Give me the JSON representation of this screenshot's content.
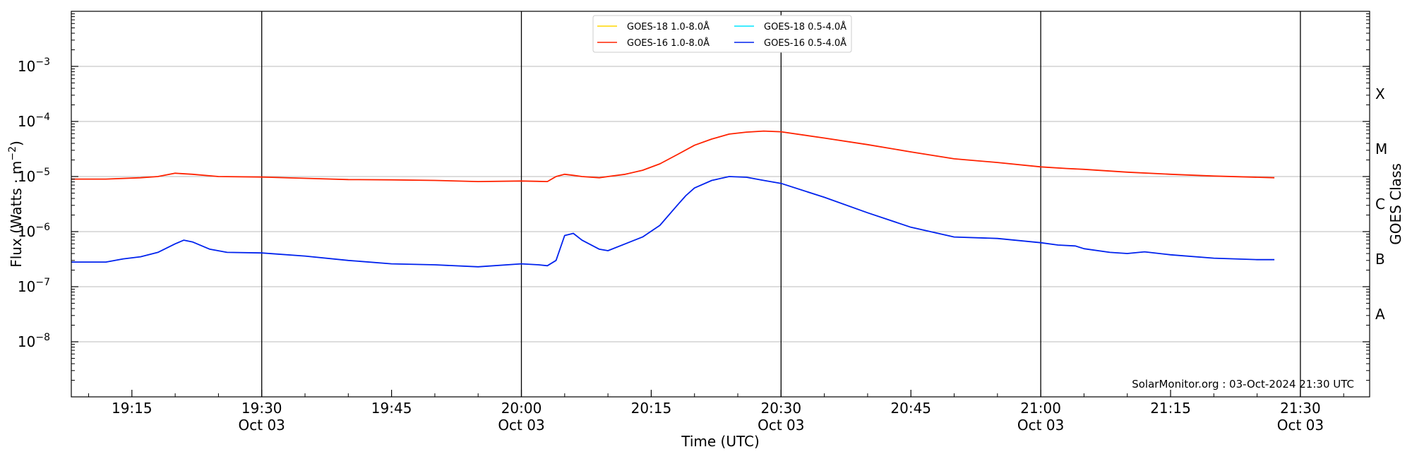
{
  "chart_data": {
    "type": "line",
    "title": "",
    "xlabel": "Time (UTC)",
    "ylabel": "Flux (Watts · m",
    "ylabel_sup": "−2",
    "ylabel_end": ")",
    "y2label": "GOES Class",
    "y_scale": "log",
    "ylim": [
      1e-09,
      0.01
    ],
    "xlim": [
      "19:08",
      "21:38"
    ],
    "grid": "horizontal at decades",
    "vertical_lines": [
      "19:30",
      "20:00",
      "20:30",
      "21:00",
      "21:30"
    ],
    "x_ticks": [
      {
        "t": "19:15",
        "label": "19:15",
        "sub": ""
      },
      {
        "t": "19:30",
        "label": "19:30",
        "sub": "Oct 03"
      },
      {
        "t": "19:45",
        "label": "19:45",
        "sub": ""
      },
      {
        "t": "20:00",
        "label": "20:00",
        "sub": "Oct 03"
      },
      {
        "t": "20:15",
        "label": "20:15",
        "sub": ""
      },
      {
        "t": "20:30",
        "label": "20:30",
        "sub": "Oct 03"
      },
      {
        "t": "20:45",
        "label": "20:45",
        "sub": ""
      },
      {
        "t": "21:00",
        "label": "21:00",
        "sub": "Oct 03"
      },
      {
        "t": "21:15",
        "label": "21:15",
        "sub": ""
      },
      {
        "t": "21:30",
        "label": "21:30",
        "sub": "Oct 03"
      }
    ],
    "y_ticks": [
      {
        "exp": -8,
        "label": "10",
        "sup": "−8"
      },
      {
        "exp": -7,
        "label": "10",
        "sup": "−7"
      },
      {
        "exp": -6,
        "label": "10",
        "sup": "−6"
      },
      {
        "exp": -5,
        "label": "10",
        "sup": "−5"
      },
      {
        "exp": -4,
        "label": "10",
        "sup": "−4"
      },
      {
        "exp": -3,
        "label": "10",
        "sup": "−3"
      }
    ],
    "goes_classes": [
      {
        "label": "A",
        "exp": -7.5
      },
      {
        "label": "B",
        "exp": -6.5
      },
      {
        "label": "C",
        "exp": -5.5
      },
      {
        "label": "M",
        "exp": -4.5
      },
      {
        "label": "X",
        "exp": -3.5
      }
    ],
    "legend": {
      "position": "top-center",
      "entries": [
        {
          "name": "GOES-18 1.0-8.0Å",
          "color": "#ffd700"
        },
        {
          "name": "GOES-16 1.0-8.0Å",
          "color": "#ff2200"
        },
        {
          "name": "GOES-18 0.5-4.0Å",
          "color": "#00e5ff"
        },
        {
          "name": "GOES-16 0.5-4.0Å",
          "color": "#0022ee"
        }
      ]
    },
    "credit": "SolarMonitor.org : 03-Oct-2024 21:30 UTC",
    "series": [
      {
        "name": "GOES-16 1.0-8.0Å",
        "color": "#ff2200",
        "x": [
          "19:08",
          "19:12",
          "19:16",
          "19:18",
          "19:20",
          "19:22",
          "19:25",
          "19:30",
          "19:35",
          "19:40",
          "19:45",
          "19:50",
          "19:55",
          "20:00",
          "20:03",
          "20:04",
          "20:05",
          "20:06",
          "20:07",
          "20:09",
          "20:10",
          "20:12",
          "20:14",
          "20:16",
          "20:18",
          "20:20",
          "20:22",
          "20:24",
          "20:26",
          "20:28",
          "20:30",
          "20:35",
          "20:40",
          "20:45",
          "20:50",
          "20:55",
          "21:00",
          "21:03",
          "21:05",
          "21:10",
          "21:15",
          "21:20",
          "21:25",
          "21:27"
        ],
        "values": [
          9e-06,
          9e-06,
          9.5e-06,
          1e-05,
          1.15e-05,
          1.1e-05,
          1e-05,
          9.8e-06,
          9.3e-06,
          8.8e-06,
          8.7e-06,
          8.5e-06,
          8.1e-06,
          8.3e-06,
          8.1e-06,
          1e-05,
          1.1e-05,
          1.05e-05,
          1e-05,
          9.5e-06,
          1e-05,
          1.1e-05,
          1.3e-05,
          1.7e-05,
          2.5e-05,
          3.7e-05,
          4.8e-05,
          5.9e-05,
          6.4e-05,
          6.7e-05,
          6.5e-05,
          5e-05,
          3.8e-05,
          2.8e-05,
          2.1e-05,
          1.8e-05,
          1.5e-05,
          1.4e-05,
          1.35e-05,
          1.2e-05,
          1.1e-05,
          1.02e-05,
          9.7e-06,
          9.5e-06
        ]
      },
      {
        "name": "GOES-16 0.5-4.0Å",
        "color": "#0022ee",
        "x": [
          "19:08",
          "19:12",
          "19:14",
          "19:16",
          "19:18",
          "19:20",
          "19:21",
          "19:22",
          "19:24",
          "19:26",
          "19:30",
          "19:35",
          "19:40",
          "19:45",
          "19:50",
          "19:55",
          "20:00",
          "20:02",
          "20:03",
          "20:04",
          "20:05",
          "20:06",
          "20:07",
          "20:09",
          "20:10",
          "20:12",
          "20:14",
          "20:16",
          "20:18",
          "20:19",
          "20:20",
          "20:22",
          "20:24",
          "20:26",
          "20:28",
          "20:30",
          "20:35",
          "20:40",
          "20:45",
          "20:50",
          "20:55",
          "21:00",
          "21:02",
          "21:04",
          "21:05",
          "21:08",
          "21:10",
          "21:12",
          "21:15",
          "21:20",
          "21:25",
          "21:27"
        ],
        "values": [
          2.8e-07,
          2.8e-07,
          3.2e-07,
          3.5e-07,
          4.2e-07,
          6e-07,
          7e-07,
          6.5e-07,
          4.8e-07,
          4.2e-07,
          4.1e-07,
          3.6e-07,
          3e-07,
          2.6e-07,
          2.5e-07,
          2.3e-07,
          2.6e-07,
          2.5e-07,
          2.4e-07,
          3e-07,
          8.5e-07,
          9.3e-07,
          7e-07,
          4.8e-07,
          4.5e-07,
          6e-07,
          8e-07,
          1.3e-06,
          3e-06,
          4.5e-06,
          6.2e-06,
          8.5e-06,
          1e-05,
          9.7e-06,
          8.5e-06,
          7.5e-06,
          4.2e-06,
          2.2e-06,
          1.2e-06,
          8e-07,
          7.5e-07,
          6.3e-07,
          5.7e-07,
          5.5e-07,
          4.9e-07,
          4.2e-07,
          4e-07,
          4.3e-07,
          3.8e-07,
          3.3e-07,
          3.1e-07,
          3.1e-07
        ]
      }
    ]
  }
}
